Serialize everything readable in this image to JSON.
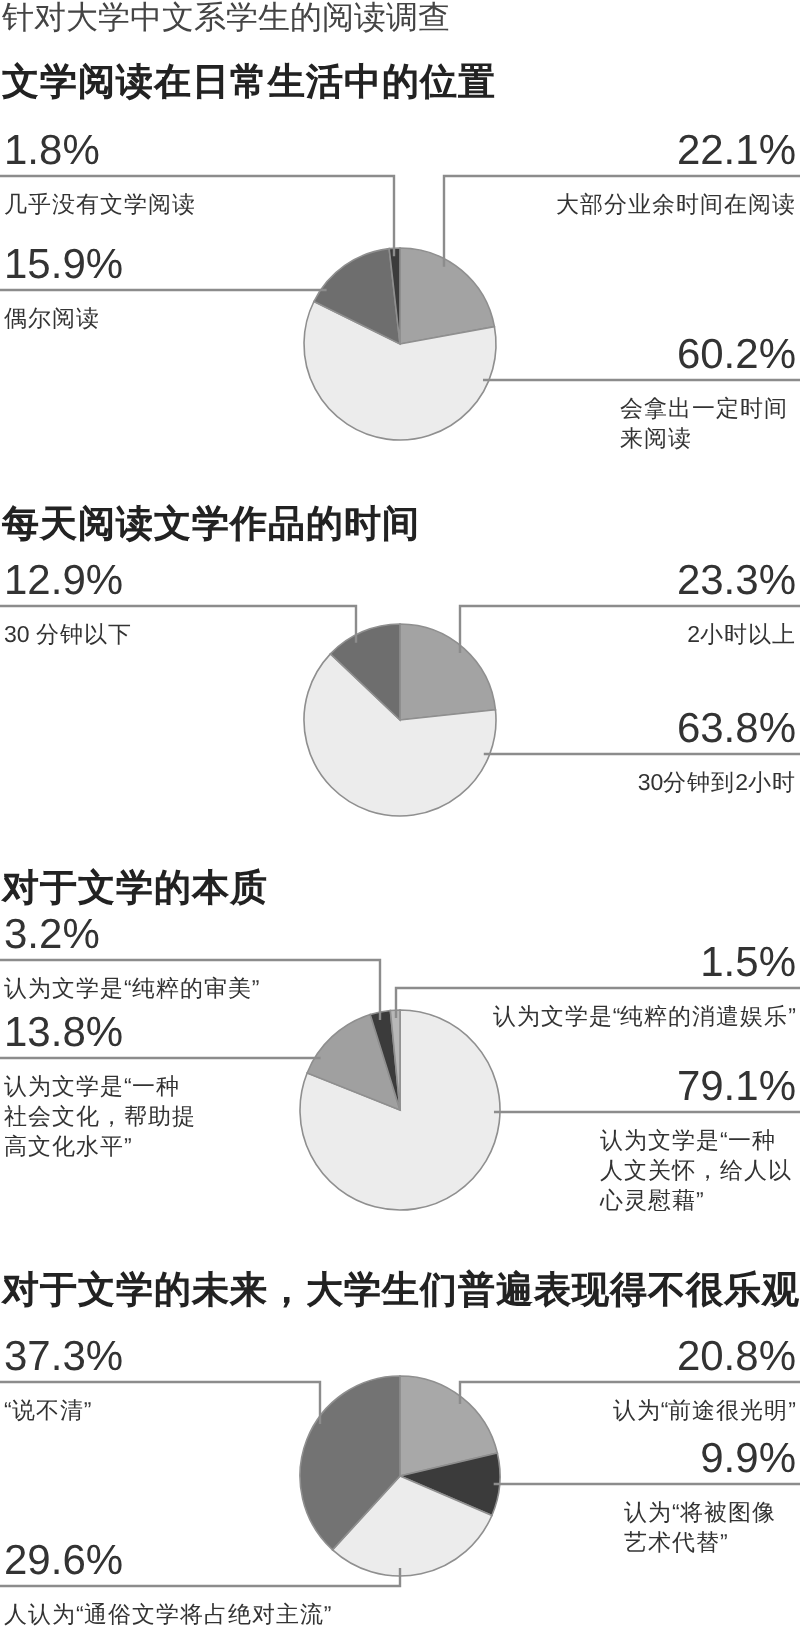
{
  "chart_data": [
    {
      "type": "pie",
      "title": "文学阅读在日常生活中的位置",
      "annotations": [
        "针对大学中文系学生的阅读调查"
      ],
      "categories": [
        "大部分业余时间在阅读",
        "会拿出一定时间来阅读",
        "偶尔阅读",
        "几乎没有文学阅读"
      ],
      "values": [
        22.1,
        60.2,
        15.9,
        1.8
      ],
      "value_labels": [
        "22.1%",
        "60.2%",
        "15.9%",
        "1.8%"
      ],
      "colors": [
        "#a3a3a3",
        "#ececec",
        "#6e6e6e",
        "#3b3b3b"
      ]
    },
    {
      "type": "pie",
      "title": "每天阅读文学作品的时间",
      "categories": [
        "2小时以上",
        "30分钟到2小时",
        "30 分钟以下"
      ],
      "values": [
        23.3,
        63.8,
        12.9
      ],
      "value_labels": [
        "23.3%",
        "63.8%",
        "12.9%"
      ],
      "colors": [
        "#a3a3a3",
        "#ececec",
        "#6e6e6e"
      ]
    },
    {
      "type": "pie",
      "title": "对于文学的本质",
      "categories": [
        "认为文学是“一种人文关怀，给人以心灵慰藉”",
        "认为文学是“一种社会文化，帮助提高文化水平”",
        "认为文学是“纯粹的审美”",
        "认为文学是“纯粹的消遣娱乐”"
      ],
      "values": [
        79.1,
        13.8,
        3.2,
        1.5
      ],
      "value_labels": [
        "79.1%",
        "13.8%",
        "3.2%",
        "1.5%"
      ],
      "colors": [
        "#ececec",
        "#a0a0a0",
        "#3b3b3b",
        "#b8b8b8"
      ]
    },
    {
      "type": "pie",
      "title": "对于文学的未来，大学生们普遍表现得不很乐观",
      "categories": [
        "认为“前途很光明”",
        "认为“将被图像艺术代替”",
        "人认为“通俗文学将占绝对主流”",
        "“说不清”"
      ],
      "values": [
        20.8,
        9.9,
        29.6,
        37.3
      ],
      "value_labels": [
        "20.8%",
        "9.9%",
        "29.6%",
        "37.3%"
      ],
      "colors": [
        "#a8a8a8",
        "#3b3b3b",
        "#ececec",
        "#737373"
      ]
    }
  ]
}
